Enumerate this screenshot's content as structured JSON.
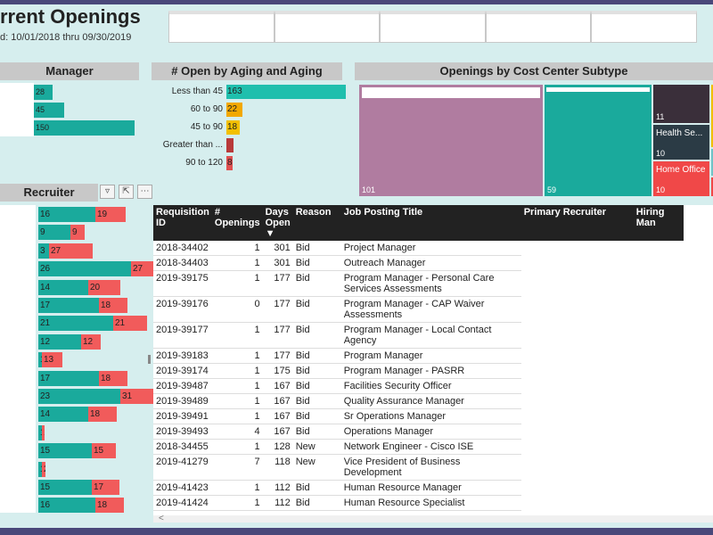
{
  "report": {
    "title": "rrent Openings",
    "subtitle": "d: 10/01/2018 thru 09/30/2019",
    "slicers": [
      "",
      "",
      "",
      "",
      ""
    ]
  },
  "manager": {
    "title": "Manager",
    "bars": [
      {
        "value": 28
      },
      {
        "value": 45
      },
      {
        "value": 150
      }
    ]
  },
  "aging": {
    "title": "# Open by Aging and Aging",
    "rows": [
      {
        "label": "Less than 45",
        "value": 163,
        "color": "#1fbfad"
      },
      {
        "label": "60 to 90",
        "value": 22,
        "color": "#f2a800"
      },
      {
        "label": "45 to 90",
        "value": 18,
        "color": "#f2c000"
      },
      {
        "label": "Greater than ...",
        "value": "",
        "color": "#b83a3a"
      },
      {
        "label": "90 to 120",
        "value": 8,
        "color": "#e05050"
      }
    ]
  },
  "cost_center": {
    "title": "Openings by Cost Center Subtype",
    "tiles": [
      {
        "value": "101",
        "label": "",
        "color": "#b07ca0"
      },
      {
        "value": "59",
        "label": "",
        "color": "#1aaa9c"
      },
      {
        "value": "11",
        "label": "",
        "color": "#3a2f3a"
      },
      {
        "value": "10",
        "label": "Health Se...",
        "color": "#2b3b45"
      },
      {
        "value": "10",
        "label": "Home Office",
        "color": "#f04848"
      }
    ]
  },
  "recruiter": {
    "title": "Recruiter",
    "icons": [
      "filter-icon",
      "focus-mode-icon",
      "more-options-icon"
    ],
    "rows": [
      {
        "teal": 16,
        "red": 19
      },
      {
        "teal": 9,
        "red": 9
      },
      {
        "teal": 3,
        "red": 27
      },
      {
        "teal": 26,
        "red": 27
      },
      {
        "teal": 14,
        "red": 20
      },
      {
        "teal": 17,
        "red": 18
      },
      {
        "teal": 21,
        "red": 21
      },
      {
        "teal": 12,
        "red": 12
      },
      {
        "teal": 1,
        "red": 13
      },
      {
        "teal": 17,
        "red": 18
      },
      {
        "teal": 23,
        "red": 31
      },
      {
        "teal": 14,
        "red": 18
      },
      {
        "teal": 1,
        "red": 1
      },
      {
        "teal": 15,
        "red": 15
      },
      {
        "teal": 1,
        "red": 2
      },
      {
        "teal": 15,
        "red": 17
      },
      {
        "teal": 16,
        "red": 18
      }
    ]
  },
  "table": {
    "columns": [
      "Requisition ID",
      "# Openings",
      "Days Open",
      "Reason",
      "Job Posting Title",
      "Primary Recruiter",
      "Hiring Man"
    ],
    "rows": [
      [
        "2018-34402",
        "1",
        "301",
        "Bid",
        "Project Manager"
      ],
      [
        "2018-34403",
        "1",
        "301",
        "Bid",
        "Outreach Manager"
      ],
      [
        "2019-39175",
        "1",
        "177",
        "Bid",
        "Program Manager - Personal Care Services Assessments"
      ],
      [
        "2019-39176",
        "0",
        "177",
        "Bid",
        "Program Manager - CAP Waiver Assessments"
      ],
      [
        "2019-39177",
        "1",
        "177",
        "Bid",
        "Program Manager - Local Contact Agency"
      ],
      [
        "2019-39183",
        "1",
        "177",
        "Bid",
        "Program Manager"
      ],
      [
        "2019-39174",
        "1",
        "175",
        "Bid",
        "Program Manager - PASRR"
      ],
      [
        "2019-39487",
        "1",
        "167",
        "Bid",
        "Facilities Security Officer"
      ],
      [
        "2019-39489",
        "1",
        "167",
        "Bid",
        "Quality Assurance Manager"
      ],
      [
        "2019-39491",
        "1",
        "167",
        "Bid",
        "Sr Operations Manager"
      ],
      [
        "2019-39493",
        "4",
        "167",
        "Bid",
        "Operations Manager"
      ],
      [
        "2018-34455",
        "1",
        "128",
        "New",
        "Network Engineer - Cisco ISE"
      ],
      [
        "2019-41279",
        "7",
        "118",
        "New",
        "Vice President of Business Development"
      ],
      [
        "2019-41423",
        "1",
        "112",
        "Bid",
        "Human Resource Manager"
      ],
      [
        "2019-41424",
        "1",
        "112",
        "Bid",
        "Human Resource Specialist"
      ]
    ]
  }
}
